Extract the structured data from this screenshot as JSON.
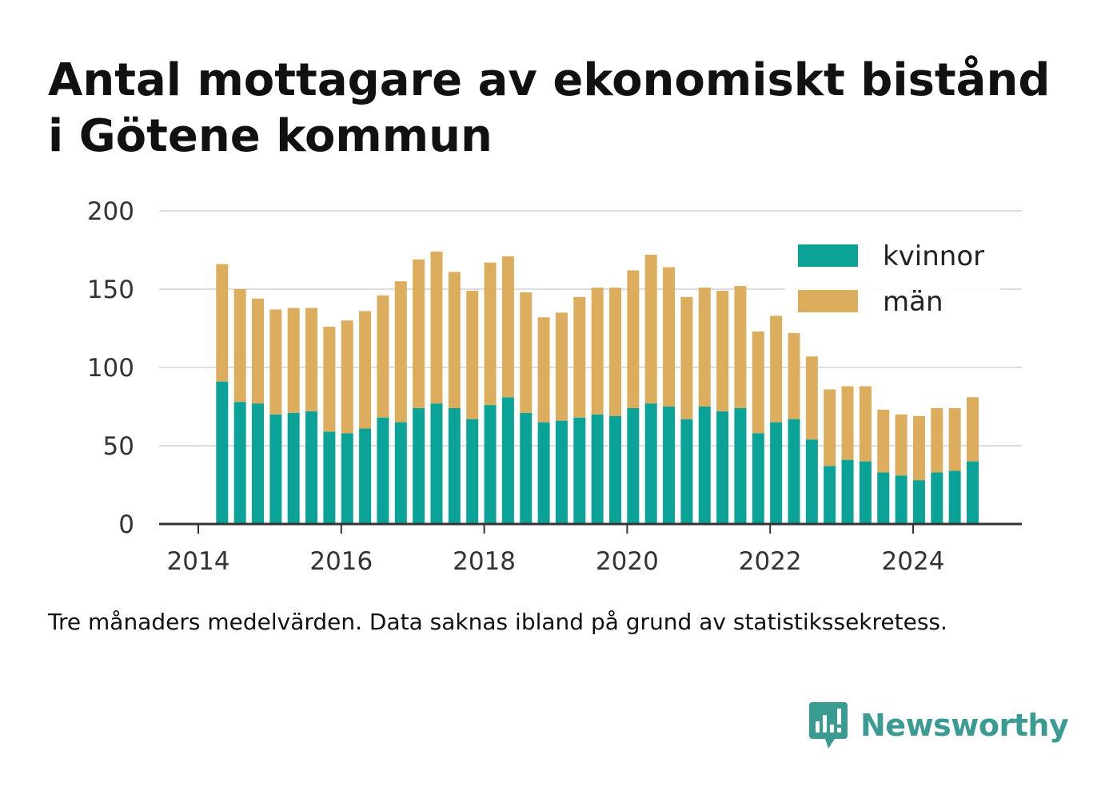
{
  "title": "Antal mottagare av ekonomiskt bistånd i Götene kommun",
  "note": "Tre månaders medelvärden. Data saknas ibland på grund av statistikssekretess.",
  "brand": {
    "name": "Newsworthy",
    "icon": "newsworthy-chart-bubble-icon",
    "color": "#3a9b92"
  },
  "colors": {
    "kvinnor": "#0ba398",
    "man": "#dcad5c",
    "grid": "#dddddd",
    "axis": "#333333"
  },
  "chart_data": {
    "type": "bar",
    "stacked": true,
    "title": "Antal mottagare av ekonomiskt bistånd i Götene kommun",
    "xlabel": "",
    "ylabel": "",
    "ylim": [
      0,
      200
    ],
    "yticks": [
      "0",
      "50",
      "100",
      "150",
      "200"
    ],
    "xticks": [
      "2014",
      "2016",
      "2018",
      "2020",
      "2022",
      "2024"
    ],
    "grid": true,
    "legend_position": "top-right",
    "categories": [
      "2014-05",
      "2014-08",
      "2014-11",
      "2015-02",
      "2015-05",
      "2015-08",
      "2015-11",
      "2016-02",
      "2016-05",
      "2016-08",
      "2016-11",
      "2017-02",
      "2017-05",
      "2017-08",
      "2017-11",
      "2018-02",
      "2018-05",
      "2018-08",
      "2018-11",
      "2019-02",
      "2019-05",
      "2019-08",
      "2019-11",
      "2020-02",
      "2020-05",
      "2020-08",
      "2020-11",
      "2021-02",
      "2021-05",
      "2021-08",
      "2021-11",
      "2022-02",
      "2022-05",
      "2022-08",
      "2022-11",
      "2023-02",
      "2023-05",
      "2023-08",
      "2023-11",
      "2024-02",
      "2024-05",
      "2024-08",
      "2024-11"
    ],
    "series": [
      {
        "name": "kvinnor",
        "values": [
          91,
          78,
          77,
          70,
          71,
          72,
          59,
          58,
          61,
          68,
          65,
          74,
          77,
          74,
          67,
          76,
          81,
          71,
          65,
          66,
          68,
          70,
          69,
          74,
          77,
          75,
          67,
          75,
          72,
          74,
          58,
          65,
          67,
          54,
          37,
          41,
          40,
          33,
          31,
          28,
          33,
          34,
          40
        ]
      },
      {
        "name": "män",
        "values": [
          75,
          72,
          67,
          67,
          67,
          66,
          67,
          72,
          75,
          78,
          90,
          95,
          97,
          87,
          82,
          91,
          90,
          77,
          67,
          69,
          77,
          81,
          82,
          88,
          95,
          89,
          78,
          76,
          77,
          78,
          65,
          68,
          55,
          53,
          49,
          47,
          48,
          40,
          39,
          41,
          41,
          40,
          41
        ]
      }
    ]
  }
}
